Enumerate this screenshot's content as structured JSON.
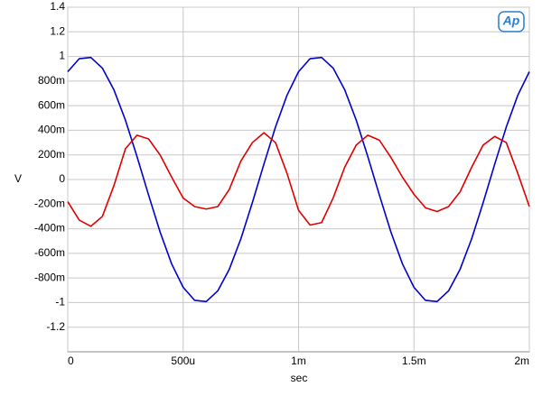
{
  "chart_data": {
    "type": "line",
    "logo": "Ap",
    "xlabel": "sec",
    "ylabel": "V",
    "x": [
      0,
      5e-05,
      0.0001,
      0.00015,
      0.0002,
      0.00025,
      0.0003,
      0.00035,
      0.0004,
      0.00045,
      0.0005,
      0.00055,
      0.0006,
      0.00065,
      0.0007,
      0.00075,
      0.0008,
      0.00085,
      0.0009,
      0.00095,
      0.001,
      0.00105,
      0.0011,
      0.00115,
      0.0012,
      0.00125,
      0.0013,
      0.00135,
      0.0014,
      0.00145,
      0.0015,
      0.00155,
      0.0016,
      0.00165,
      0.0017,
      0.00175,
      0.0018,
      0.00185,
      0.0019,
      0.00195,
      0.002
    ],
    "series": [
      {
        "color": "#0000cc",
        "values": [
          0.876,
          0.982,
          0.992,
          0.905,
          0.729,
          0.482,
          0.187,
          -0.125,
          -0.426,
          -0.685,
          -0.876,
          -0.982,
          -0.992,
          -0.905,
          -0.729,
          -0.482,
          -0.187,
          0.125,
          0.426,
          0.685,
          0.876,
          0.982,
          0.992,
          0.905,
          0.729,
          0.482,
          0.187,
          -0.125,
          -0.426,
          -0.685,
          -0.876,
          -0.982,
          -0.992,
          -0.905,
          -0.729,
          -0.482,
          -0.187,
          0.125,
          0.426,
          0.685,
          0.876
        ]
      },
      {
        "color": "#e00000",
        "values": [
          -0.18,
          -0.33,
          -0.38,
          -0.3,
          -0.05,
          0.25,
          0.36,
          0.33,
          0.2,
          0.02,
          -0.15,
          -0.22,
          -0.24,
          -0.22,
          -0.08,
          0.15,
          0.3,
          0.38,
          0.3,
          0.05,
          -0.25,
          -0.37,
          -0.35,
          -0.15,
          0.1,
          0.28,
          0.36,
          0.32,
          0.18,
          0.02,
          -0.12,
          -0.23,
          -0.26,
          -0.22,
          -0.1,
          0.1,
          0.28,
          0.35,
          0.3,
          0.05,
          -0.22
        ]
      }
    ],
    "xlim": [
      0,
      0.002
    ],
    "xticks": [
      0,
      {
        "value": 0.0005,
        "label": "500u"
      },
      {
        "value": 0.001,
        "label": "1m"
      },
      {
        "value": 0.0015,
        "label": "1.5m"
      },
      {
        "value": 0.002,
        "label": "2m"
      }
    ],
    "ylim": [
      -1.4,
      1.4
    ],
    "yticks": [
      1.4,
      1.2,
      1,
      {
        "value": 0.8,
        "label": "800m"
      },
      {
        "value": 0.6,
        "label": "600m"
      },
      {
        "value": 0.4,
        "label": "400m"
      },
      {
        "value": 0.2,
        "label": "200m"
      },
      0,
      {
        "value": -0.2,
        "label": "-200m"
      },
      {
        "value": -0.4,
        "label": "-400m"
      },
      {
        "value": -0.6,
        "label": "-600m"
      },
      {
        "value": -0.8,
        "label": "-800m"
      },
      -1,
      -1.2
    ],
    "grid": true
  }
}
